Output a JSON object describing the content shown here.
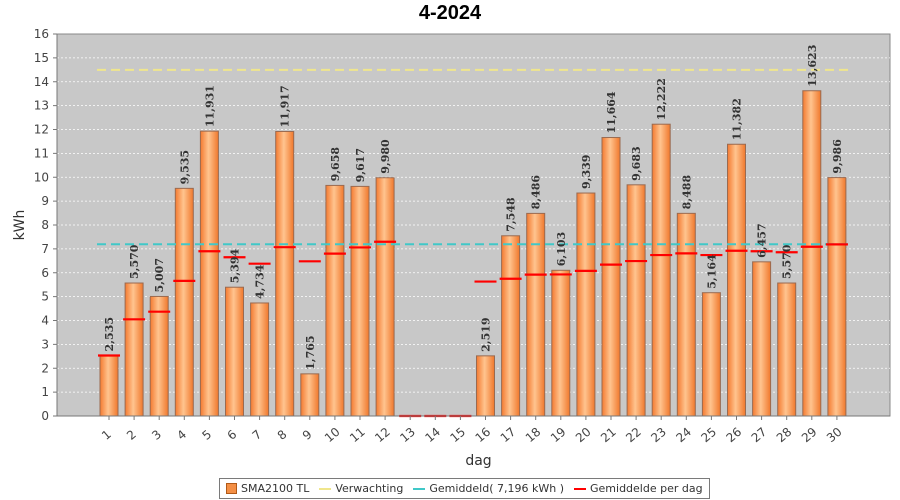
{
  "chart_data": {
    "type": "bar",
    "title": "4-2024",
    "xlabel": "dag",
    "ylabel": "kWh",
    "ylim": [
      0,
      16
    ],
    "yticks": [
      0,
      1,
      2,
      3,
      4,
      5,
      6,
      7,
      8,
      9,
      10,
      11,
      12,
      13,
      14,
      15,
      16
    ],
    "grid": true,
    "categories": [
      "1",
      "2",
      "3",
      "4",
      "5",
      "6",
      "7",
      "8",
      "9",
      "10",
      "11",
      "12",
      "13",
      "14",
      "15",
      "16",
      "17",
      "18",
      "19",
      "20",
      "21",
      "22",
      "23",
      "24",
      "25",
      "26",
      "27",
      "28",
      "29",
      "30"
    ],
    "series": [
      {
        "name": "SMA2100 TL",
        "kind": "bar",
        "color": "#f48f45",
        "values": [
          2.535,
          5.57,
          5.007,
          9.535,
          11.931,
          5.394,
          4.734,
          11.917,
          1.765,
          9.658,
          9.617,
          9.98,
          0,
          0,
          0,
          2.519,
          7.548,
          8.486,
          6.103,
          9.339,
          11.664,
          9.683,
          12.222,
          8.488,
          5.164,
          11.382,
          6.457,
          5.57,
          13.623,
          9.986
        ],
        "labels": [
          "2,535",
          "5,570",
          "5,007",
          "9,535",
          "11,931",
          "5,394",
          "4,734",
          "11,917",
          "1,765",
          "9,658",
          "9,617",
          "9,980",
          "",
          "",
          "",
          "2,519",
          "7,548",
          "8,486",
          "6,103",
          "9,339",
          "11,664",
          "9,683",
          "12,222",
          "8,488",
          "5,164",
          "11,382",
          "6,457",
          "5,570",
          "13,623",
          "9,986"
        ]
      },
      {
        "name": "Verwachting",
        "kind": "hline",
        "color": "#f0e68c",
        "value": 14.5
      },
      {
        "name": "Gemiddeld( 7,196 kWh )",
        "kind": "hline",
        "color": "#40c8c8",
        "value": 7.196
      },
      {
        "name": "Gemiddelde per dag",
        "kind": "marker",
        "color": "#ff0000",
        "values": [
          2.535,
          4.05,
          4.37,
          5.66,
          6.9,
          6.65,
          6.38,
          7.07,
          6.48,
          6.8,
          7.06,
          7.3,
          0,
          0,
          0,
          5.63,
          5.75,
          5.92,
          5.93,
          6.08,
          6.34,
          6.49,
          6.74,
          6.81,
          6.74,
          6.92,
          6.9,
          6.86,
          7.09,
          7.19
        ]
      }
    ]
  },
  "legend": {
    "bar_label": "SMA2100 TL",
    "verwachting_label": "Verwachting",
    "gemiddeld_label": "Gemiddeld( 7,196 kWh )",
    "per_dag_label": "Gemiddelde per dag"
  }
}
